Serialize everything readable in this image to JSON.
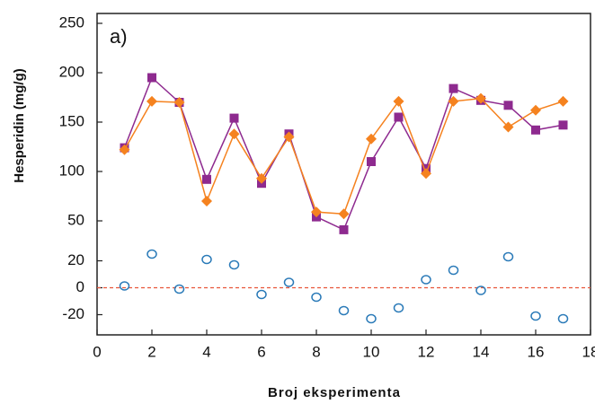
{
  "chart_data": [
    {
      "type": "line",
      "annotation": "a)",
      "ylabel": "Hesperidin (mg/g)",
      "ylim": [
        30,
        260
      ],
      "yticks": [
        50,
        100,
        150,
        200,
        250
      ],
      "x": [
        1,
        2,
        3,
        4,
        5,
        6,
        7,
        8,
        9,
        10,
        11,
        12,
        13,
        14,
        15,
        16,
        17
      ],
      "series": [
        {
          "color": "#8e2a8f",
          "marker": "square",
          "values": [
            124,
            195,
            170,
            92,
            154,
            88,
            138,
            54,
            41,
            110,
            155,
            103,
            184,
            172,
            167,
            142,
            147
          ]
        },
        {
          "color": "#f5821f",
          "marker": "diamond",
          "values": [
            122,
            171,
            170,
            70,
            138,
            93,
            135,
            59,
            57,
            133,
            171,
            98,
            171,
            174,
            145,
            162,
            171
          ]
        }
      ]
    },
    {
      "type": "scatter",
      "xlabel": "Broj eksperimenta",
      "xlim": [
        0,
        18
      ],
      "xticks": [
        0,
        2,
        4,
        6,
        8,
        10,
        12,
        14,
        16,
        18
      ],
      "ylim": [
        -35,
        35
      ],
      "yticks": [
        -20,
        0,
        20
      ],
      "hline": 0,
      "hline_color": "#e8553a",
      "x": [
        1,
        2,
        3,
        4,
        5,
        6,
        7,
        8,
        9,
        10,
        11,
        12,
        13,
        14,
        15,
        16,
        17
      ],
      "series": [
        {
          "color": "#2a7ab8",
          "marker": "open-circle",
          "values": [
            1.3,
            25,
            -1,
            21,
            17,
            -5,
            4,
            -7,
            -17,
            -23,
            -15,
            6,
            13,
            -2,
            23,
            -21,
            -23
          ]
        }
      ]
    }
  ]
}
